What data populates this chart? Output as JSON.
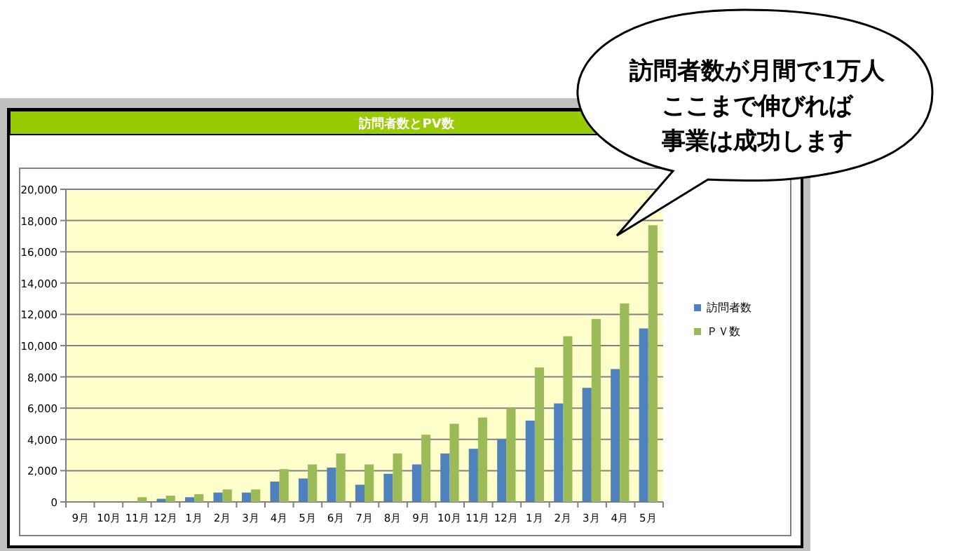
{
  "chart_data": {
    "type": "bar",
    "title": "訪問者数とPV数",
    "categories": [
      "9月",
      "10月",
      "11月",
      "12月",
      "1月",
      "2月",
      "3月",
      "4月",
      "5月",
      "6月",
      "7月",
      "8月",
      "9月",
      "10月",
      "11月",
      "12月",
      "1月",
      "2月",
      "3月",
      "4月",
      "5月"
    ],
    "series": [
      {
        "name": "訪問者数",
        "color": "#4f81bd",
        "values": [
          0,
          0,
          0,
          200,
          300,
          600,
          600,
          1300,
          1500,
          2200,
          1100,
          1800,
          2400,
          3100,
          3400,
          4000,
          5200,
          6300,
          7300,
          8500,
          11100
        ]
      },
      {
        "name": "ＰＶ数",
        "color": "#9bbb59",
        "values": [
          0,
          0,
          300,
          400,
          500,
          800,
          800,
          2100,
          2400,
          3100,
          2400,
          3100,
          4300,
          5000,
          5400,
          6000,
          8600,
          10600,
          11700,
          12700,
          17700
        ]
      }
    ],
    "ylim": [
      0,
      20000
    ],
    "yticks": [
      {
        "value": 0,
        "label": "0"
      },
      {
        "value": 2000,
        "label": "2,000"
      },
      {
        "value": 4000,
        "label": "4,000"
      },
      {
        "value": 6000,
        "label": "6,000"
      },
      {
        "value": 8000,
        "label": "8,000"
      },
      {
        "value": 10000,
        "label": "10,000"
      },
      {
        "value": 12000,
        "label": "12,000"
      },
      {
        "value": 14000,
        "label": "14,000"
      },
      {
        "value": 16000,
        "label": "16,000"
      },
      {
        "value": 18000,
        "label": "18,000"
      },
      {
        "value": 20000,
        "label": "20,000"
      }
    ],
    "grid": "y",
    "legend": "right",
    "annotations": [
      "訪問者数が月間で1万人",
      "ここまで伸びれば",
      "事業は成功します"
    ]
  }
}
